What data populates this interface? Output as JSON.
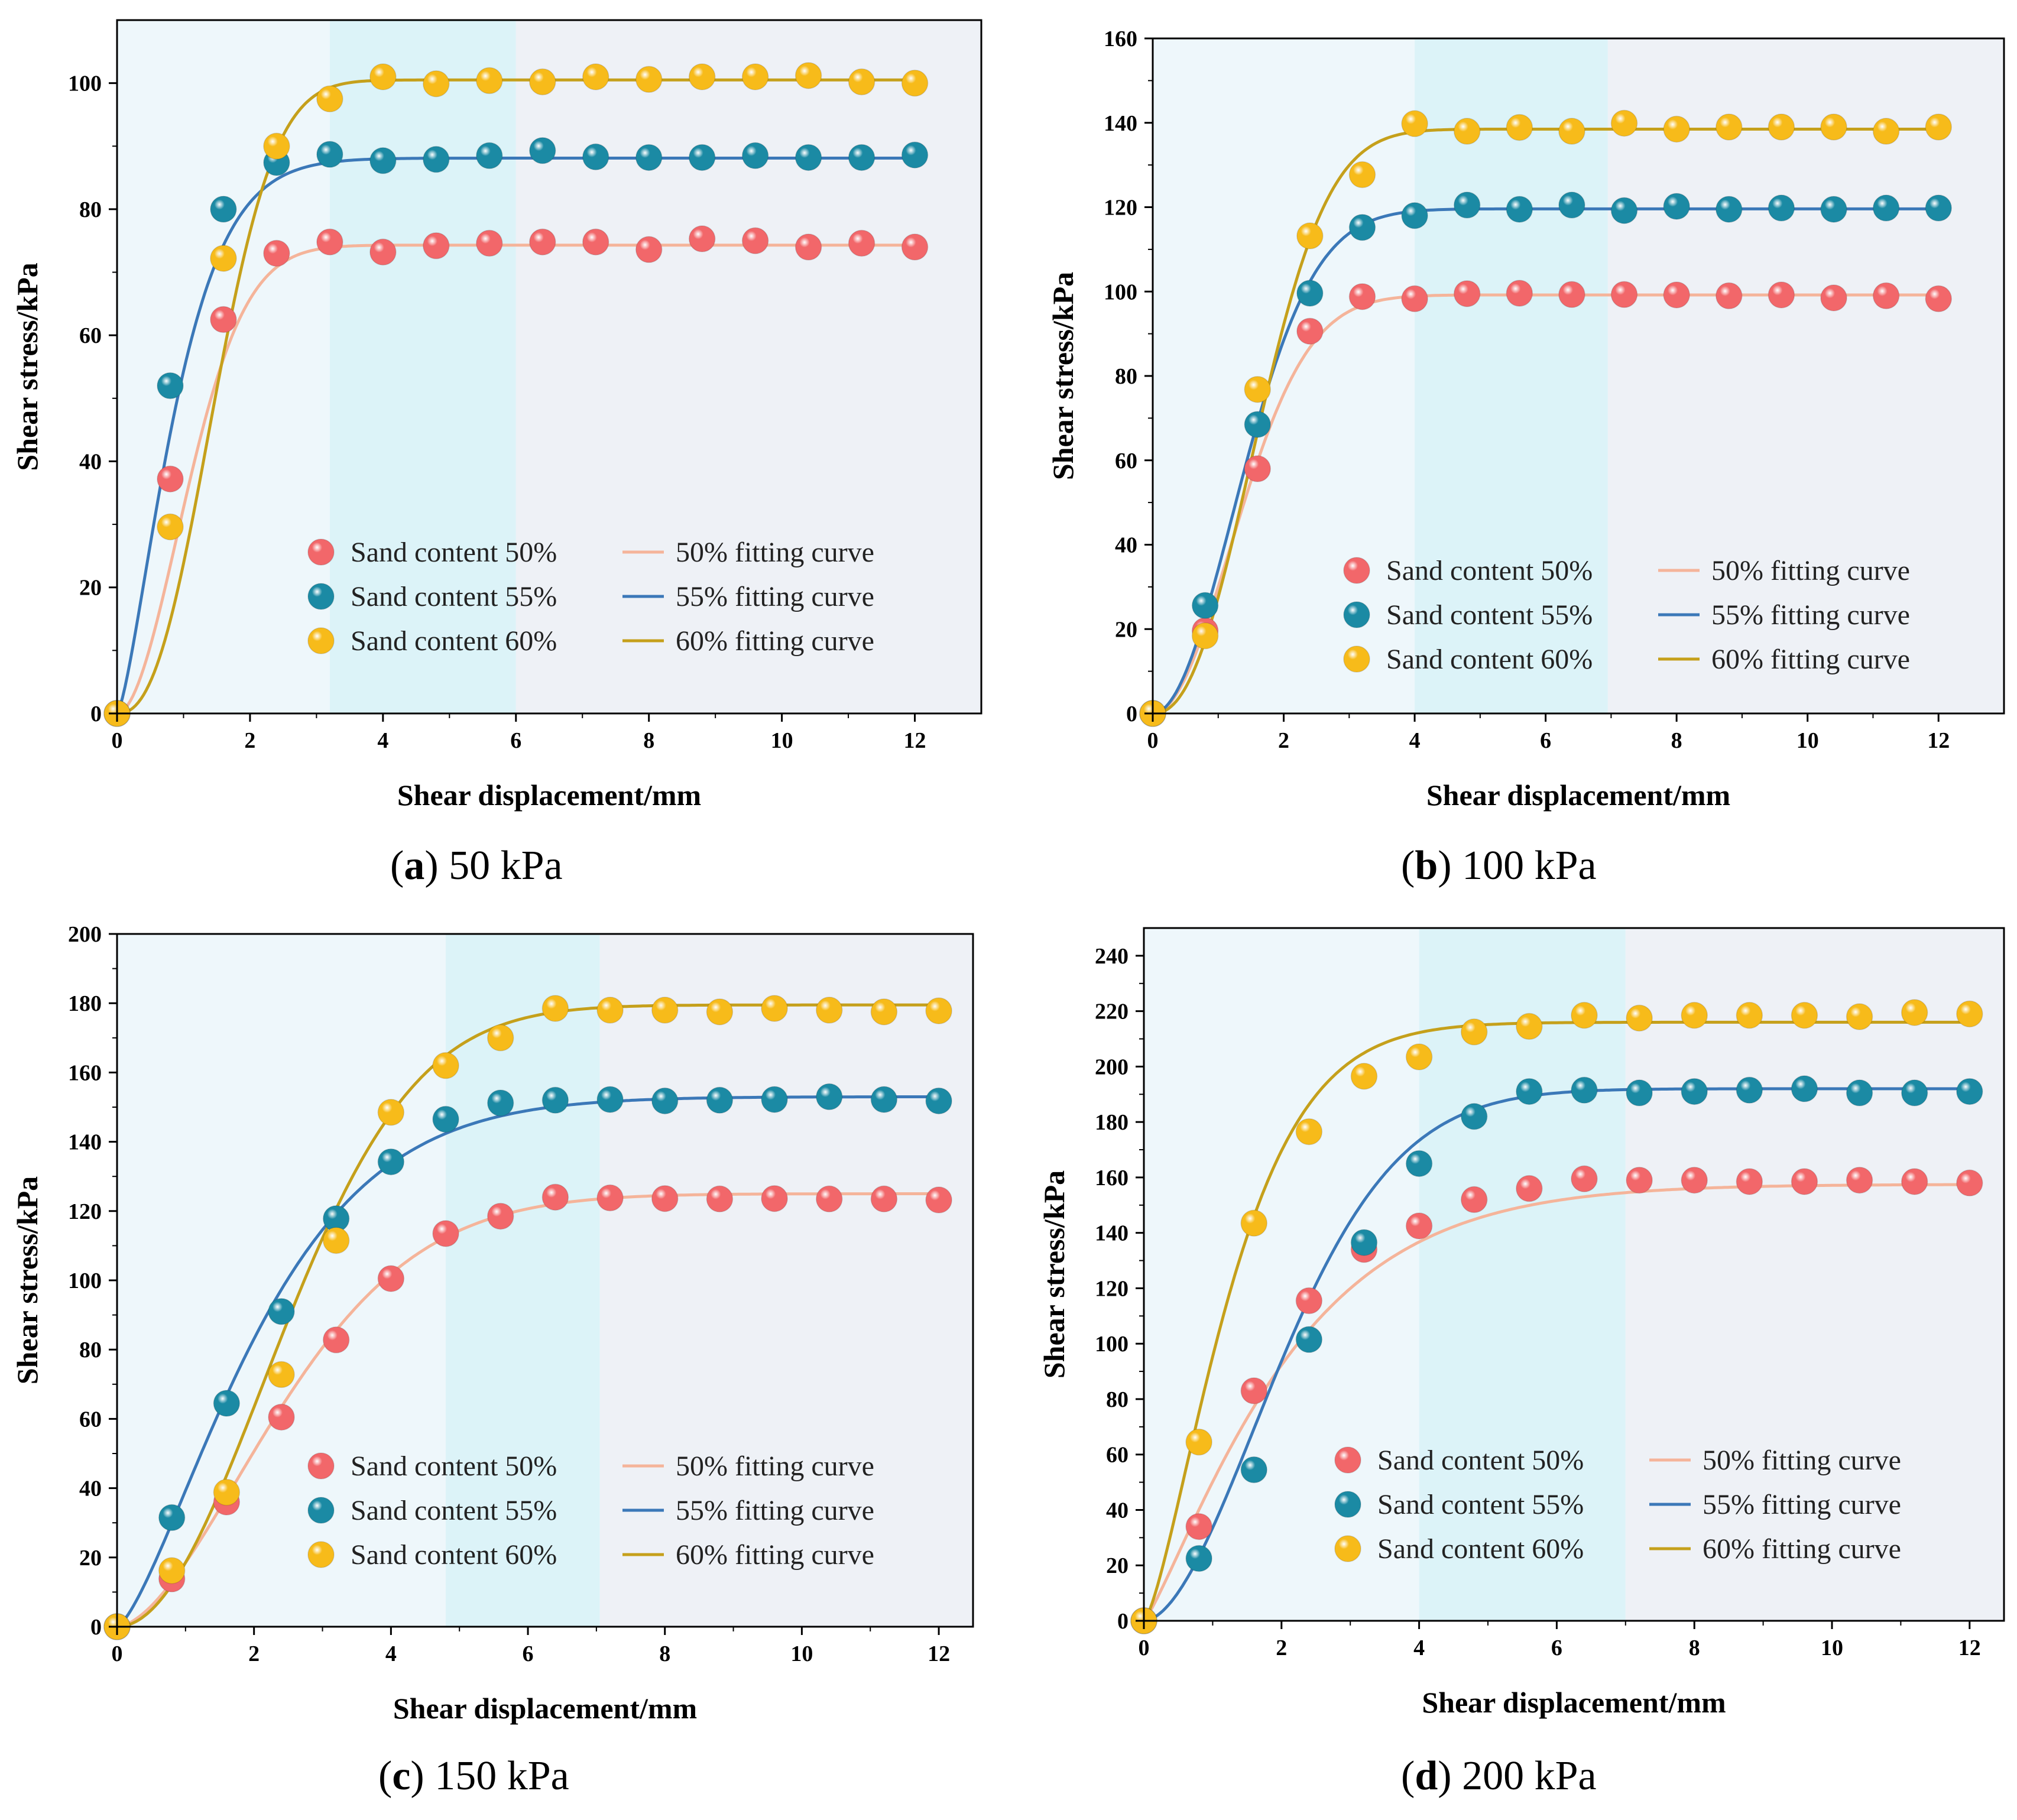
{
  "chart_data": [
    {
      "type": "scatter",
      "title": "",
      "caption": {
        "letter": "a",
        "text": " 50 kPa"
      },
      "xlabel": "Shear displacement/mm",
      "ylabel": "Shear stress/kPa",
      "xlim": [
        0,
        13
      ],
      "ylim": [
        0,
        110
      ],
      "xticks": [
        0,
        2,
        4,
        6,
        8,
        10,
        12
      ],
      "yticks": [
        0,
        20,
        40,
        60,
        80,
        100
      ],
      "shaded_regions": [
        {
          "from": 0,
          "to": 3.2,
          "color": "#eef7fb"
        },
        {
          "from": 3.2,
          "to": 6.0,
          "color": "#dcf3f8"
        },
        {
          "from": 6.0,
          "to": 13,
          "color": "#eef1f6"
        }
      ],
      "legend_position": "bottom-right",
      "x": [
        0,
        0.8,
        1.6,
        2.4,
        3.2,
        4.0,
        4.8,
        5.6,
        6.4,
        7.2,
        8.0,
        8.8,
        9.6,
        10.4,
        11.2,
        12.0
      ],
      "series": [
        {
          "name": "Sand content 50%",
          "fit_name": "50% fitting curve",
          "color": "#f2676a",
          "fit_color": "#f5b49a",
          "values": [
            0,
            37.2,
            62.5,
            73,
            74.8,
            73.2,
            74.2,
            74.6,
            74.8,
            74.8,
            73.6,
            75.3,
            75,
            74,
            74.6,
            74
          ],
          "fit": {
            "amplitude": 74.3,
            "rate": 0.75,
            "power": 1.9
          }
        },
        {
          "name": "Sand content 55%",
          "fit_name": "55% fitting curve",
          "color": "#1b8aa4",
          "fit_color": "#3b78b8",
          "values": [
            0,
            52,
            80,
            87.4,
            88.7,
            87.7,
            87.9,
            88.5,
            89.3,
            88.3,
            88.2,
            88.2,
            88.5,
            88.2,
            88.2,
            88.6
          ],
          "fit": {
            "amplitude": 88.1,
            "rate": 0.97,
            "power": 1.4
          }
        },
        {
          "name": "Sand content 60%",
          "fit_name": "60% fitting curve",
          "color": "#f7bb1a",
          "fit_color": "#c5a01b",
          "values": [
            0,
            29.6,
            72.2,
            90,
            97.5,
            101,
            99.9,
            100.4,
            100.2,
            101,
            100.6,
            101,
            101,
            101.2,
            100.2,
            100
          ],
          "fit": {
            "amplitude": 100.5,
            "rate": 0.58,
            "power": 2.4
          }
        }
      ]
    },
    {
      "type": "scatter",
      "title": "",
      "caption": {
        "letter": "b",
        "text": " 100 kPa"
      },
      "xlabel": "Shear displacement/mm",
      "ylabel": "Shear stress/kPa",
      "xlim": [
        0,
        13
      ],
      "ylim": [
        0,
        160
      ],
      "xticks": [
        0,
        2,
        4,
        6,
        8,
        10,
        12
      ],
      "yticks": [
        0,
        20,
        40,
        60,
        80,
        100,
        120,
        140,
        160
      ],
      "shaded_regions": [
        {
          "from": 0,
          "to": 4.0,
          "color": "#eef7fb"
        },
        {
          "from": 4.0,
          "to": 6.95,
          "color": "#dcf3f8"
        },
        {
          "from": 6.95,
          "to": 13,
          "color": "#eef1f6"
        }
      ],
      "legend_position": "bottom-right",
      "x": [
        0,
        0.8,
        1.6,
        2.4,
        3.2,
        4.0,
        4.8,
        5.6,
        6.4,
        7.2,
        8.0,
        8.8,
        9.6,
        10.4,
        11.2,
        12.0
      ],
      "series": [
        {
          "name": "Sand content 50%",
          "fit_name": "50% fitting curve",
          "color": "#f2676a",
          "fit_color": "#f5b49a",
          "values": [
            0,
            19.6,
            58,
            90.6,
            98.8,
            98.3,
            99.5,
            99.6,
            99.3,
            99.3,
            99.2,
            99,
            99.2,
            98.5,
            99,
            98.3
          ],
          "fit": {
            "amplitude": 99.2,
            "rate": 0.6,
            "power": 2.0
          }
        },
        {
          "name": "Sand content 55%",
          "fit_name": "55% fitting curve",
          "color": "#1b8aa4",
          "fit_color": "#3b78b8",
          "values": [
            0,
            25.6,
            68.5,
            99.6,
            115.2,
            118,
            120.5,
            119.5,
            120.5,
            119.2,
            120.2,
            119.5,
            119.8,
            119.5,
            119.8,
            119.8
          ],
          "fit": {
            "amplitude": 119.6,
            "rate": 0.58,
            "power": 2.0
          }
        },
        {
          "name": "Sand content 60%",
          "fit_name": "60% fitting curve",
          "color": "#f7bb1a",
          "fit_color": "#c5a01b",
          "values": [
            0,
            18.4,
            76.8,
            113.2,
            127.7,
            139.8,
            138,
            138.9,
            138,
            139.9,
            138.5,
            139,
            139,
            139,
            138,
            139
          ],
          "fit": {
            "amplitude": 138.5,
            "rate": 0.52,
            "power": 2.3
          }
        }
      ]
    },
    {
      "type": "scatter",
      "title": "",
      "caption": {
        "letter": "c",
        "text": " 150 kPa"
      },
      "xlabel": "Shear displacement/mm",
      "ylabel": "Shear stress/kPa",
      "xlim": [
        0,
        12.5
      ],
      "ylim": [
        0,
        200
      ],
      "xticks": [
        0,
        2,
        4,
        6,
        8,
        10,
        12
      ],
      "yticks": [
        0,
        20,
        40,
        60,
        80,
        100,
        120,
        140,
        160,
        180,
        200
      ],
      "shaded_regions": [
        {
          "from": 0,
          "to": 4.8,
          "color": "#eef7fb"
        },
        {
          "from": 4.8,
          "to": 7.05,
          "color": "#dcf3f8"
        },
        {
          "from": 7.05,
          "to": 12.5,
          "color": "#eef1f6"
        }
      ],
      "legend_position": "bottom-right",
      "x": [
        0,
        0.8,
        1.6,
        2.4,
        3.2,
        4.0,
        4.8,
        5.6,
        6.4,
        7.2,
        8.0,
        8.8,
        9.6,
        10.4,
        11.2,
        12.0
      ],
      "series": [
        {
          "name": "Sand content 50%",
          "fit_name": "50% fitting curve",
          "color": "#f2676a",
          "fit_color": "#f5b49a",
          "values": [
            0,
            13.8,
            36,
            60.5,
            82.8,
            100.5,
            113.5,
            118.5,
            124,
            123.8,
            123.6,
            123.5,
            123.6,
            123.5,
            123.5,
            123.2
          ],
          "fit": {
            "amplitude": 125,
            "rate": 0.34,
            "power": 1.7
          }
        },
        {
          "name": "Sand content 55%",
          "fit_name": "55% fitting curve",
          "color": "#1b8aa4",
          "fit_color": "#3b78b8",
          "values": [
            0,
            31.5,
            64.5,
            91,
            117.8,
            134.2,
            146.5,
            151.2,
            152,
            152.2,
            151.8,
            152,
            152.2,
            153,
            152.2,
            151.8
          ],
          "fit": {
            "amplitude": 153,
            "rate": 0.42,
            "power": 1.4
          }
        },
        {
          "name": "Sand content 60%",
          "fit_name": "60% fitting curve",
          "color": "#f7bb1a",
          "fit_color": "#c5a01b",
          "values": [
            0,
            16.2,
            38.8,
            72.8,
            111.5,
            148.5,
            162,
            170,
            178.5,
            178,
            178,
            177.5,
            178.5,
            178,
            177.5,
            177.8
          ],
          "fit": {
            "amplitude": 179.5,
            "rate": 0.33,
            "power": 2.0
          }
        }
      ]
    },
    {
      "type": "scatter",
      "title": "",
      "caption": {
        "letter": "d",
        "text": " 200 kPa"
      },
      "xlabel": "Shear displacement/mm",
      "ylabel": "Shear stress/kPa",
      "xlim": [
        0,
        12.5
      ],
      "ylim": [
        0,
        250
      ],
      "xticks": [
        0,
        2,
        4,
        6,
        8,
        10,
        12
      ],
      "yticks": [
        0,
        20,
        40,
        60,
        80,
        100,
        120,
        140,
        160,
        180,
        200,
        220,
        240
      ],
      "shaded_regions": [
        {
          "from": 0,
          "to": 4.0,
          "color": "#eef7fb"
        },
        {
          "from": 4.0,
          "to": 7.0,
          "color": "#dcf3f8"
        },
        {
          "from": 7.0,
          "to": 12.5,
          "color": "#eef1f6"
        }
      ],
      "legend_position": "bottom-right",
      "x": [
        0,
        0.8,
        1.6,
        2.4,
        3.2,
        4.0,
        4.8,
        5.6,
        6.4,
        7.2,
        8.0,
        8.8,
        9.6,
        10.4,
        11.2,
        12.0
      ],
      "series": [
        {
          "name": "Sand content 50%",
          "fit_name": "50% fitting curve",
          "color": "#f2676a",
          "fit_color": "#f5b49a",
          "values": [
            0,
            34,
            83,
            115.5,
            134,
            142.5,
            152,
            156,
            159.5,
            159,
            159,
            158.5,
            158.5,
            159,
            158.5,
            158
          ],
          "fit": {
            "amplitude": 157.5,
            "rate": 0.45,
            "power": 1.2
          }
        },
        {
          "name": "Sand content 55%",
          "fit_name": "55% fitting curve",
          "color": "#1b8aa4",
          "fit_color": "#3b78b8",
          "values": [
            0,
            22.5,
            54.5,
            101.5,
            136.5,
            165,
            182,
            191,
            191.5,
            190.5,
            191,
            191.5,
            192,
            190.5,
            190.5,
            191
          ],
          "fit": {
            "amplitude": 192,
            "rate": 0.4,
            "power": 1.8
          }
        },
        {
          "name": "Sand content 60%",
          "fit_name": "60% fitting curve",
          "color": "#f7bb1a",
          "fit_color": "#c5a01b",
          "values": [
            0,
            64.5,
            143.5,
            176.5,
            196.5,
            203.5,
            212.5,
            214.5,
            218.5,
            217.5,
            218.5,
            218.5,
            218.5,
            218,
            219.5,
            219
          ],
          "fit": {
            "amplitude": 216,
            "rate": 0.68,
            "power": 1.4
          }
        }
      ]
    }
  ]
}
